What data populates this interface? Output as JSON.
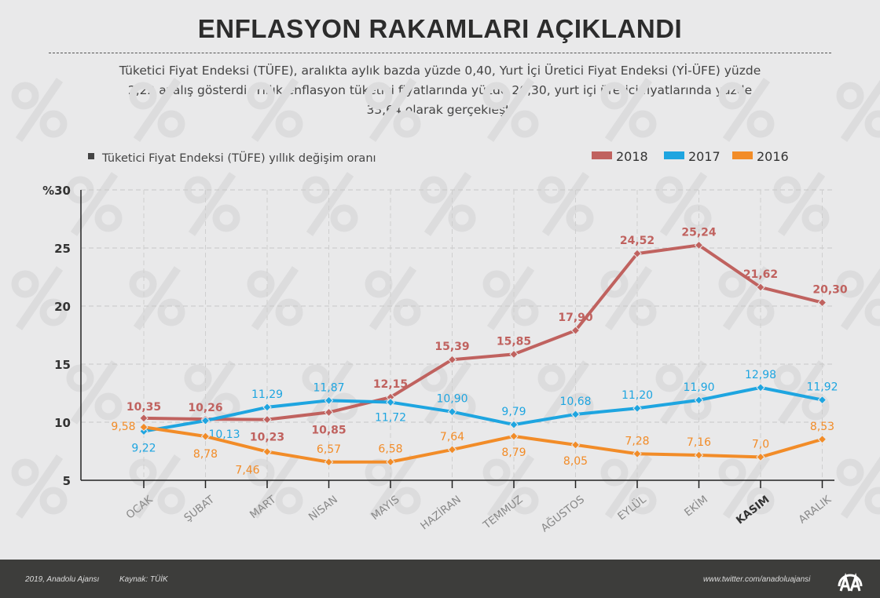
{
  "title": "ENFLASYON RAKAMLARI AÇIKLANDI",
  "subtitle": "Tüketici Fiyat Endeksi (TÜFE), aralıkta aylık bazda yüzde 0,40, Yurt İçi Üretici Fiyat Endeksi (Yİ-ÜFE) yüzde 2,22 azalış gösterdi. Yıllık enflasyon tüketici fiyatlarında yüzde 20,30, yurt içi üretici fiyatlarında yüzde 33,64 olarak gerçekleşti",
  "chart_data": {
    "type": "line",
    "title": "Tüketici Fiyat Endeksi (TÜFE) yıllık değişim oranı",
    "categories": [
      "OCAK",
      "ŞUBAT",
      "MART",
      "NİSAN",
      "MAYIS",
      "HAZİRAN",
      "TEMMUZ",
      "AĞUSTOS",
      "EYLÜL",
      "EKİM",
      "KASIM",
      "ARALIK"
    ],
    "highlighted_category": "KASIM",
    "y_ticks": [
      "5",
      "10",
      "15",
      "20",
      "25",
      "%30"
    ],
    "ylim": [
      5,
      30
    ],
    "grid": true,
    "legend_position": "top-right",
    "series": [
      {
        "name": "2018",
        "color": "#c0625f",
        "values": [
          10.35,
          10.26,
          10.23,
          10.85,
          12.15,
          15.39,
          15.85,
          17.9,
          24.52,
          25.24,
          21.62,
          20.3
        ],
        "labels": [
          "10,35",
          "10,26",
          "10,23",
          "10,85",
          "12,15",
          "15,39",
          "15,85",
          "17,90",
          "24,52",
          "25,24",
          "21,62",
          "20,30"
        ]
      },
      {
        "name": "2017",
        "color": "#1ea5e0",
        "values": [
          9.22,
          10.13,
          11.29,
          11.87,
          11.72,
          10.9,
          9.79,
          10.68,
          11.2,
          11.9,
          12.98,
          11.92
        ],
        "labels": [
          "9,22",
          "10,13",
          "11,29",
          "11,87",
          "11,72",
          "10,90",
          "9,79",
          "10,68",
          "11,20",
          "11,90",
          "12,98",
          "11,92"
        ]
      },
      {
        "name": "2016",
        "color": "#f28c28",
        "values": [
          9.58,
          8.78,
          7.46,
          6.57,
          6.58,
          7.64,
          8.79,
          8.05,
          7.28,
          7.16,
          7.0,
          8.53
        ],
        "labels": [
          "9,58",
          "8,78",
          "7,46",
          "6,57",
          "6,58",
          "7,64",
          "8,79",
          "8,05",
          "7,28",
          "7,16",
          "7,0",
          "8,53"
        ]
      }
    ]
  },
  "footer": {
    "copyright": "2019, Anadolu Ajansı",
    "source": "Kaynak: TÜİK",
    "twitter": "www.twitter.com/anadoluajansi",
    "logo_text": "AA"
  }
}
